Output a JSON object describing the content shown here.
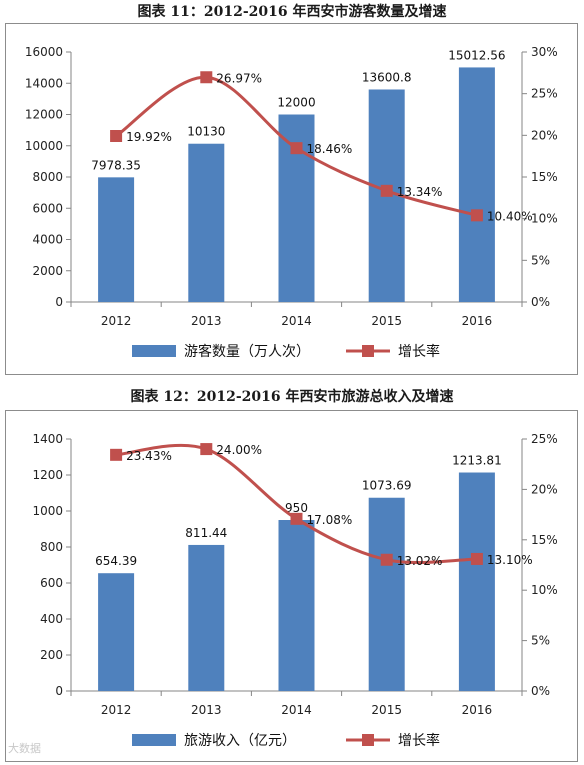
{
  "colors": {
    "bar": "#4f81bd",
    "line": "#c0504d",
    "marker": "#c0504d",
    "axis": "#868686"
  },
  "chart_data": [
    {
      "type": "bar",
      "title": "图表 11：2012-2016 年西安市游客数量及增速",
      "categories": [
        "2012",
        "2013",
        "2014",
        "2015",
        "2016"
      ],
      "series": [
        {
          "name": "游客数量（万人次）",
          "type": "bar",
          "axis": "left",
          "values": [
            7978.35,
            10130,
            12000,
            13600.8,
            15012.56
          ],
          "labels": [
            "7978.35",
            "10130",
            "12000",
            "13600.8",
            "15012.56"
          ]
        },
        {
          "name": "增长率",
          "type": "line",
          "axis": "right",
          "values": [
            19.92,
            26.97,
            18.46,
            13.34,
            10.4
          ],
          "labels": [
            "19.92%",
            "26.97%",
            "18.46%",
            "13.34%",
            "10.40%"
          ]
        }
      ],
      "y_left": {
        "min": 0,
        "max": 16000,
        "step": 2000,
        "ticks": [
          "0",
          "2000",
          "4000",
          "6000",
          "8000",
          "10000",
          "12000",
          "14000",
          "16000"
        ]
      },
      "y_right": {
        "min": 0,
        "max": 30,
        "step": 5,
        "ticks": [
          "0%",
          "5%",
          "10%",
          "15%",
          "20%",
          "25%",
          "30%"
        ]
      },
      "grid": false,
      "legend": "bottom"
    },
    {
      "type": "bar",
      "title": "图表 12：2012-2016 年西安市旅游总收入及增速",
      "categories": [
        "2012",
        "2013",
        "2014",
        "2015",
        "2016"
      ],
      "series": [
        {
          "name": "旅游收入（亿元）",
          "type": "bar",
          "axis": "left",
          "values": [
            654.39,
            811.44,
            950,
            1073.69,
            1213.81
          ],
          "labels": [
            "654.39",
            "811.44",
            "950",
            "1073.69",
            "1213.81"
          ]
        },
        {
          "name": "增长率",
          "type": "line",
          "axis": "right",
          "values": [
            23.43,
            24.0,
            17.08,
            13.02,
            13.1
          ],
          "labels": [
            "23.43%",
            "24.00%",
            "17.08%",
            "13.02%",
            "13.10%"
          ]
        }
      ],
      "y_left": {
        "min": 0,
        "max": 1400,
        "step": 200,
        "ticks": [
          "0",
          "200",
          "400",
          "600",
          "800",
          "1000",
          "1200",
          "1400"
        ]
      },
      "y_right": {
        "min": 0,
        "max": 25,
        "step": 5,
        "ticks": [
          "0%",
          "5%",
          "10%",
          "15%",
          "20%",
          "25%"
        ]
      },
      "grid": false,
      "legend": "bottom"
    }
  ],
  "watermark": "大数据"
}
